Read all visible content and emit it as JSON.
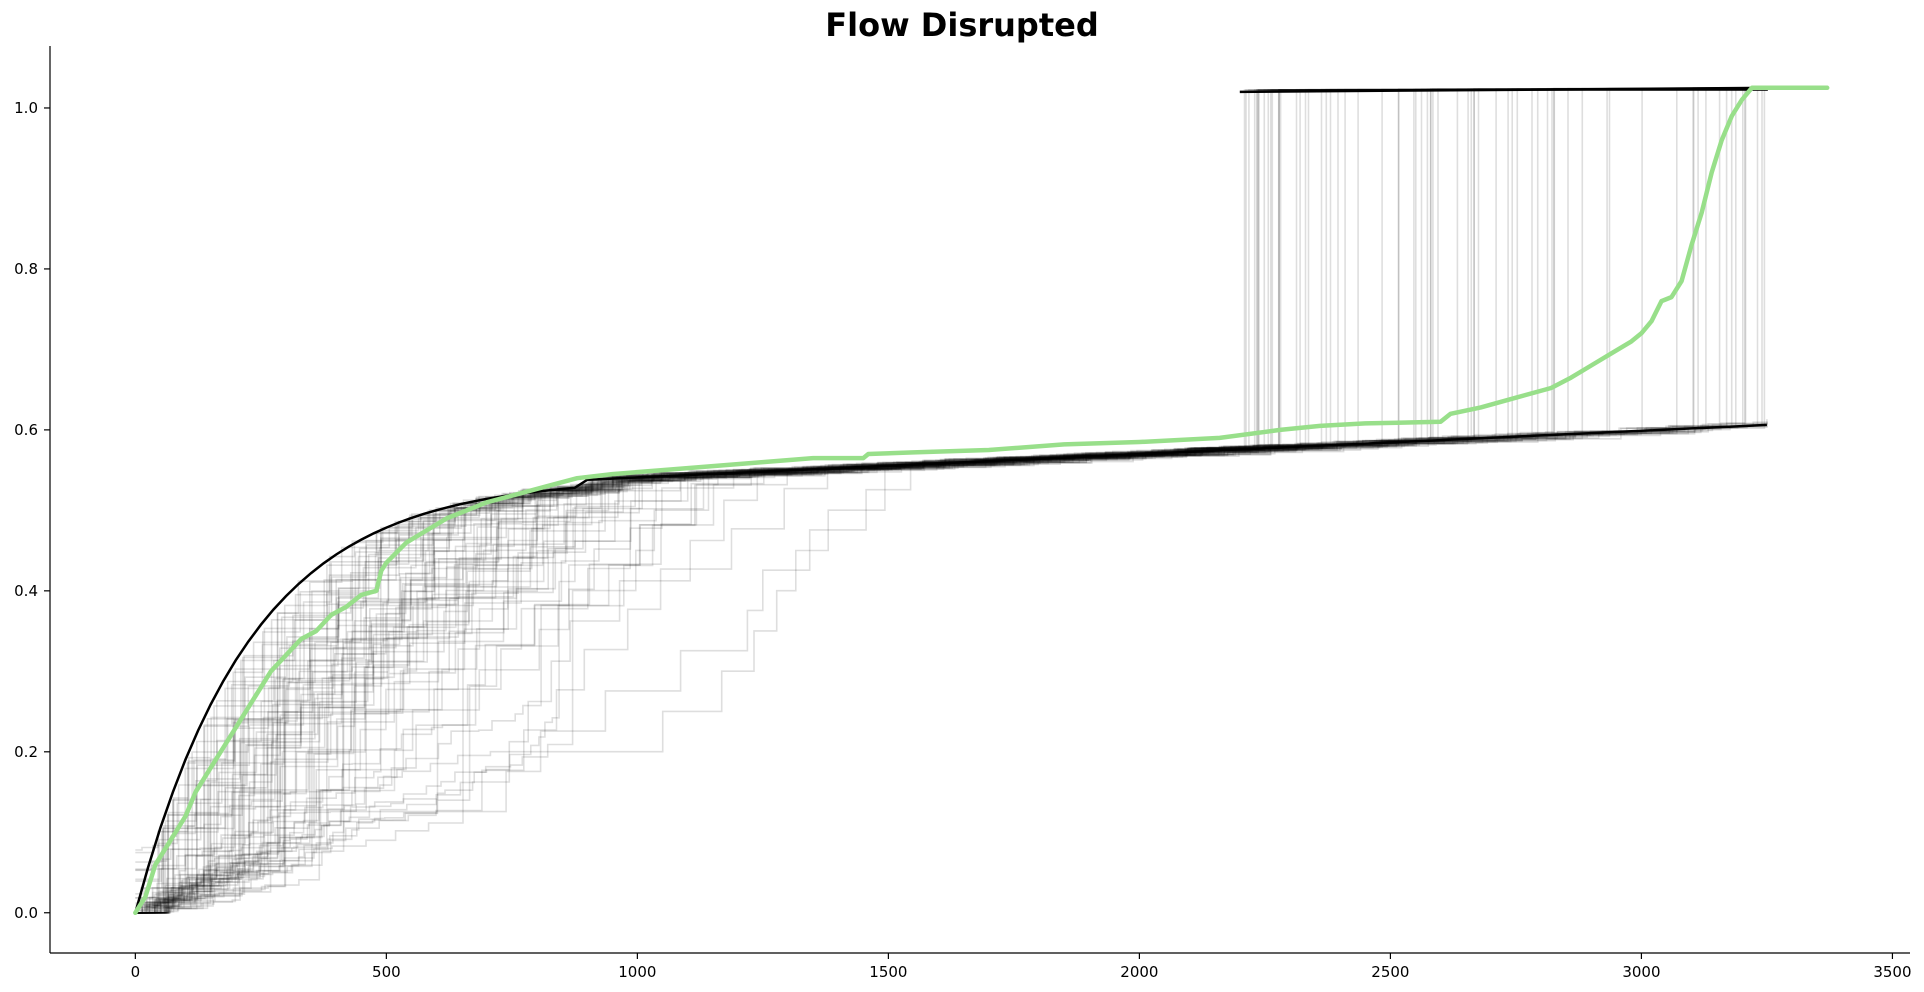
{
  "chart_data": {
    "type": "line",
    "title": "Flow Disrupted",
    "xlabel": "",
    "ylabel": "",
    "xlim": [
      -170,
      3535
    ],
    "ylim": [
      -0.05,
      1.077
    ],
    "x_ticks": [
      0,
      500,
      1000,
      1500,
      2000,
      2500,
      3000,
      3500
    ],
    "y_ticks": [
      0.0,
      0.2,
      0.4,
      0.6,
      0.8,
      1.0
    ],
    "grid": false,
    "legend": "none",
    "colors": {
      "highlight": "#98df8a",
      "background_traces": "#000000"
    },
    "background_traces_count": 80,
    "highlight_series": {
      "x": [
        0,
        20,
        40,
        60,
        80,
        100,
        120,
        150,
        180,
        210,
        240,
        270,
        300,
        330,
        360,
        390,
        420,
        450,
        480,
        490,
        500,
        540,
        580,
        620,
        660,
        700,
        760,
        820,
        880,
        950,
        1050,
        1150,
        1250,
        1350,
        1450,
        1460,
        1550,
        1700,
        1850,
        2000,
        2160,
        2280,
        2360,
        2450,
        2600,
        2620,
        2680,
        2750,
        2820,
        2860,
        2900,
        2940,
        2980,
        3000,
        3020,
        3040,
        3060,
        3080,
        3100,
        3120,
        3140,
        3160,
        3180,
        3200,
        3220,
        3240,
        3250,
        3370
      ],
      "y": [
        0.0,
        0.02,
        0.06,
        0.08,
        0.1,
        0.12,
        0.15,
        0.18,
        0.21,
        0.24,
        0.27,
        0.3,
        0.32,
        0.34,
        0.35,
        0.37,
        0.38,
        0.395,
        0.4,
        0.425,
        0.435,
        0.46,
        0.475,
        0.49,
        0.5,
        0.51,
        0.52,
        0.53,
        0.54,
        0.545,
        0.55,
        0.555,
        0.56,
        0.565,
        0.565,
        0.57,
        0.572,
        0.575,
        0.582,
        0.585,
        0.59,
        0.6,
        0.605,
        0.608,
        0.61,
        0.62,
        0.628,
        0.64,
        0.652,
        0.665,
        0.68,
        0.695,
        0.71,
        0.72,
        0.735,
        0.76,
        0.765,
        0.785,
        0.83,
        0.87,
        0.92,
        0.96,
        0.99,
        1.01,
        1.025,
        1.025,
        1.025,
        1.025
      ]
    }
  }
}
